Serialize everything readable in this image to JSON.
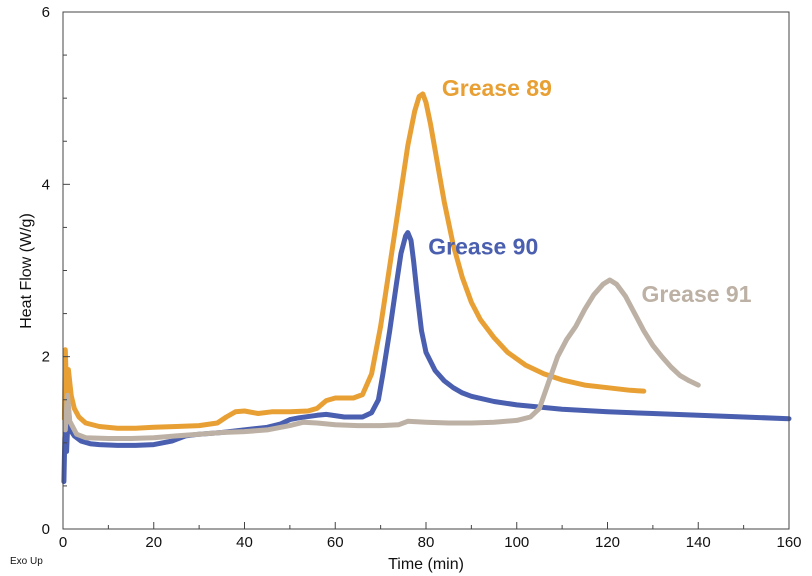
{
  "chart_data": {
    "type": "line",
    "xlabel": "Time (min)",
    "ylabel": "Heat Flow (W/g)",
    "footnote": "Exo Up",
    "xlim": [
      0,
      160
    ],
    "ylim": [
      0,
      6
    ],
    "x_ticks": [
      0,
      20,
      40,
      60,
      80,
      100,
      120,
      140,
      160
    ],
    "y_ticks": [
      0,
      2,
      4,
      6
    ],
    "grid": false,
    "series": [
      {
        "name": "Grease 89",
        "color": "#E8A035",
        "points": [
          [
            0.3,
            1.28
          ],
          [
            0.5,
            2.08
          ],
          [
            0.8,
            1.6
          ],
          [
            1.2,
            1.85
          ],
          [
            1.8,
            1.55
          ],
          [
            2.5,
            1.4
          ],
          [
            3.5,
            1.3
          ],
          [
            5,
            1.23
          ],
          [
            8,
            1.19
          ],
          [
            12,
            1.17
          ],
          [
            16,
            1.17
          ],
          [
            20,
            1.18
          ],
          [
            25,
            1.19
          ],
          [
            30,
            1.2
          ],
          [
            34,
            1.23
          ],
          [
            36,
            1.3
          ],
          [
            38,
            1.36
          ],
          [
            40,
            1.37
          ],
          [
            43,
            1.34
          ],
          [
            46,
            1.36
          ],
          [
            50,
            1.36
          ],
          [
            54,
            1.37
          ],
          [
            56,
            1.4
          ],
          [
            58,
            1.49
          ],
          [
            60,
            1.52
          ],
          [
            62,
            1.52
          ],
          [
            64,
            1.52
          ],
          [
            66,
            1.56
          ],
          [
            68,
            1.8
          ],
          [
            70,
            2.35
          ],
          [
            72,
            3.05
          ],
          [
            74,
            3.75
          ],
          [
            76,
            4.45
          ],
          [
            77.5,
            4.85
          ],
          [
            78.5,
            5.02
          ],
          [
            79.3,
            5.05
          ],
          [
            80,
            4.95
          ],
          [
            81,
            4.7
          ],
          [
            82,
            4.4
          ],
          [
            83,
            4.1
          ],
          [
            84,
            3.8
          ],
          [
            86,
            3.3
          ],
          [
            88,
            2.92
          ],
          [
            90,
            2.63
          ],
          [
            92,
            2.43
          ],
          [
            95,
            2.22
          ],
          [
            98,
            2.05
          ],
          [
            102,
            1.9
          ],
          [
            106,
            1.8
          ],
          [
            110,
            1.73
          ],
          [
            115,
            1.67
          ],
          [
            120,
            1.64
          ],
          [
            125,
            1.61
          ],
          [
            128,
            1.6
          ]
        ]
      },
      {
        "name": "Grease 90",
        "color": "#4A5FAF",
        "points": [
          [
            0.2,
            0.55
          ],
          [
            0.4,
            1.05
          ],
          [
            0.6,
            1.22
          ],
          [
            0.8,
            0.9
          ],
          [
            1.2,
            1.4
          ],
          [
            1.6,
            1.15
          ],
          [
            2.5,
            1.08
          ],
          [
            4,
            1.02
          ],
          [
            6,
            0.99
          ],
          [
            8,
            0.98
          ],
          [
            12,
            0.97
          ],
          [
            16,
            0.97
          ],
          [
            20,
            0.98
          ],
          [
            24,
            1.02
          ],
          [
            27,
            1.08
          ],
          [
            30,
            1.1
          ],
          [
            35,
            1.12
          ],
          [
            40,
            1.15
          ],
          [
            45,
            1.18
          ],
          [
            48,
            1.22
          ],
          [
            50,
            1.27
          ],
          [
            52,
            1.29
          ],
          [
            56,
            1.32
          ],
          [
            58,
            1.33
          ],
          [
            62,
            1.3
          ],
          [
            66,
            1.3
          ],
          [
            68,
            1.35
          ],
          [
            69.5,
            1.5
          ],
          [
            70.5,
            1.8
          ],
          [
            72,
            2.3
          ],
          [
            73.5,
            2.85
          ],
          [
            74.5,
            3.2
          ],
          [
            75.5,
            3.4
          ],
          [
            76,
            3.44
          ],
          [
            76.7,
            3.35
          ],
          [
            77.3,
            3.1
          ],
          [
            78,
            2.75
          ],
          [
            79,
            2.3
          ],
          [
            80,
            2.05
          ],
          [
            82,
            1.84
          ],
          [
            84,
            1.72
          ],
          [
            86,
            1.64
          ],
          [
            88,
            1.58
          ],
          [
            90,
            1.54
          ],
          [
            95,
            1.48
          ],
          [
            100,
            1.44
          ],
          [
            110,
            1.39
          ],
          [
            120,
            1.36
          ],
          [
            130,
            1.34
          ],
          [
            140,
            1.32
          ],
          [
            150,
            1.3
          ],
          [
            160,
            1.28
          ]
        ]
      },
      {
        "name": "Grease 91",
        "color": "#BCB1A4",
        "points": [
          [
            0.5,
            1.15
          ],
          [
            1,
            1.55
          ],
          [
            1.5,
            1.25
          ],
          [
            3,
            1.1
          ],
          [
            5,
            1.06
          ],
          [
            10,
            1.05
          ],
          [
            15,
            1.05
          ],
          [
            20,
            1.06
          ],
          [
            25,
            1.08
          ],
          [
            30,
            1.1
          ],
          [
            35,
            1.12
          ],
          [
            40,
            1.13
          ],
          [
            45,
            1.15
          ],
          [
            50,
            1.2
          ],
          [
            53,
            1.24
          ],
          [
            56,
            1.23
          ],
          [
            60,
            1.21
          ],
          [
            65,
            1.2
          ],
          [
            70,
            1.2
          ],
          [
            74,
            1.21
          ],
          [
            76,
            1.25
          ],
          [
            80,
            1.24
          ],
          [
            85,
            1.23
          ],
          [
            90,
            1.23
          ],
          [
            95,
            1.24
          ],
          [
            100,
            1.26
          ],
          [
            103,
            1.3
          ],
          [
            105,
            1.4
          ],
          [
            107,
            1.7
          ],
          [
            109,
            2.0
          ],
          [
            111,
            2.2
          ],
          [
            113,
            2.35
          ],
          [
            115,
            2.55
          ],
          [
            117,
            2.72
          ],
          [
            119,
            2.84
          ],
          [
            120.5,
            2.89
          ],
          [
            122,
            2.84
          ],
          [
            124,
            2.7
          ],
          [
            126,
            2.5
          ],
          [
            128,
            2.3
          ],
          [
            130,
            2.13
          ],
          [
            132,
            2.0
          ],
          [
            134,
            1.88
          ],
          [
            136,
            1.78
          ],
          [
            138,
            1.72
          ],
          [
            140,
            1.67
          ]
        ]
      }
    ]
  },
  "series_label_anchors": [
    {
      "series": 0,
      "x": 83.5,
      "y": 5.12
    },
    {
      "series": 1,
      "x": 80.5,
      "y": 3.28
    },
    {
      "series": 2,
      "x": 127.5,
      "y": 2.73
    }
  ]
}
